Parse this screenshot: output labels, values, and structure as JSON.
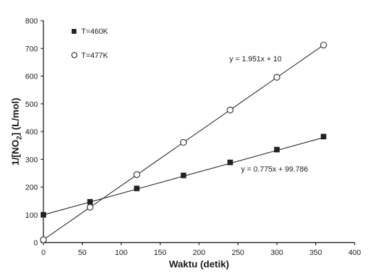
{
  "chart_data": {
    "type": "scatter",
    "title": "",
    "xlabel": "Waktu (detik)",
    "ylabel_parts": {
      "pre": "1/[NO",
      "sub": "2",
      "post": "] (L/mol)"
    },
    "xlim": [
      0,
      400
    ],
    "ylim": [
      0,
      800
    ],
    "xticks": [
      0,
      50,
      100,
      150,
      200,
      250,
      300,
      350,
      400
    ],
    "yticks": [
      0,
      100,
      200,
      300,
      400,
      500,
      600,
      700,
      800
    ],
    "grid": false,
    "legend_position": "top-left",
    "series": [
      {
        "name": "T=460K",
        "marker": "filled-square",
        "x": [
          0,
          60,
          120,
          180,
          240,
          300,
          360
        ],
        "y": [
          100,
          147,
          195,
          242,
          289,
          335,
          382
        ],
        "trendline": {
          "slope": 0.775,
          "intercept": 99.786,
          "equation": "y = 0.775x + 99.786"
        }
      },
      {
        "name": "T=477K",
        "marker": "open-circle",
        "x": [
          0,
          60,
          120,
          180,
          240,
          300,
          360
        ],
        "y": [
          10,
          127,
          245,
          361,
          478,
          596,
          712
        ],
        "trendline": {
          "slope": 1.951,
          "intercept": 10,
          "equation": "y = 1.951x + 10"
        }
      }
    ]
  }
}
